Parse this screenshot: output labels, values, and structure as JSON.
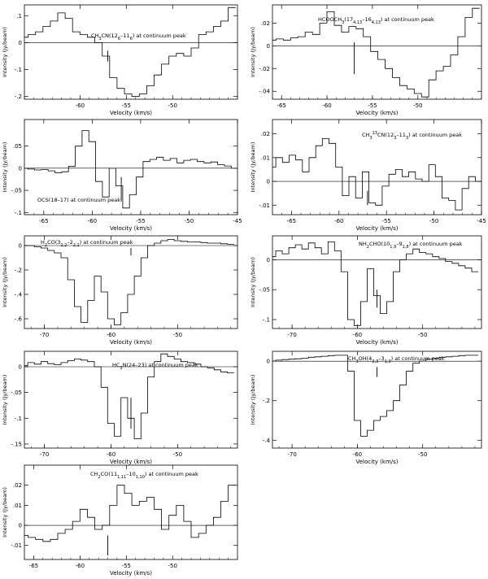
{
  "chart_data": [
    {
      "type": "line",
      "title": "CH3CN(12_6–11_6) at continuum peak",
      "title_html": "CH<tspan baseline-shift='sub' font-size='5'>3</tspan>CN(12<tspan baseline-shift='sub' font-size='5'>6</tspan>–11<tspan baseline-shift='sub' font-size='5'>6</tspan>) at continuum peak",
      "xlabel": "Velocity (km/s)",
      "ylabel": "Intensity (Jy/beam)",
      "xlim": [
        -66,
        -43
      ],
      "ylim": [
        -0.21,
        0.14
      ],
      "xticks": [
        -60,
        -55,
        -50
      ],
      "yticks": [
        -0.2,
        -0.1,
        0,
        0.1
      ],
      "vline": {
        "x": -57,
        "y": [
          -0.07,
          -0.03
        ]
      },
      "x": [
        -66,
        -65.2,
        -64.4,
        -63.6,
        -62.8,
        -62,
        -61.2,
        -60.4,
        -59.6,
        -58.8,
        -58,
        -57.2,
        -56.4,
        -55.6,
        -54.8,
        -54,
        -53.2,
        -52.4,
        -51.6,
        -50.8,
        -50,
        -49.2,
        -48.4,
        -47.6,
        -46.8,
        -46,
        -45.2,
        -44.4,
        -43.6
      ],
      "y": [
        0.02,
        0.03,
        0.04,
        0.06,
        0.08,
        0.11,
        0.09,
        0.04,
        0.03,
        0.02,
        0.0,
        -0.05,
        -0.13,
        -0.17,
        -0.19,
        -0.2,
        -0.19,
        -0.16,
        -0.12,
        -0.08,
        -0.05,
        -0.04,
        -0.05,
        -0.02,
        0.03,
        0.04,
        0.06,
        0.08,
        0.13
      ]
    },
    {
      "type": "line",
      "title": "HCOOCH3(17_4,13–16_4,13) at continuum peak",
      "title_html": "HCOOCH<tspan baseline-shift='sub' font-size='5'>3</tspan>(17<tspan baseline-shift='sub' font-size='5'>4,13</tspan>–16<tspan baseline-shift='sub' font-size='5'>4,13</tspan>) at continuum peak",
      "xlabel": "Velocity (km/s)",
      "ylabel": "Intensity (Jy/beam)",
      "xlim": [
        -66,
        -43
      ],
      "ylim": [
        -0.047,
        0.036
      ],
      "xticks": [
        -65,
        -60,
        -55,
        -50
      ],
      "yticks": [
        -0.04,
        -0.02,
        0,
        0.02
      ],
      "vline": {
        "x": -57,
        "y": [
          -0.025,
          0.003
        ]
      },
      "x": [
        -66,
        -65.2,
        -64.4,
        -63.6,
        -62.8,
        -62,
        -61.2,
        -60.4,
        -59.6,
        -58.8,
        -58,
        -57.2,
        -56.4,
        -55.6,
        -54.8,
        -54,
        -53.2,
        -52.4,
        -51.6,
        -50.8,
        -50,
        -49.2,
        -48.4,
        -47.6,
        -46.8,
        -46,
        -45.2,
        -44.4,
        -43.6
      ],
      "y": [
        0.005,
        0.006,
        0.005,
        0.007,
        0.008,
        0.012,
        0.01,
        0.02,
        0.03,
        0.018,
        0.012,
        0.017,
        0.015,
        0.008,
        -0.005,
        -0.012,
        -0.02,
        -0.028,
        -0.035,
        -0.038,
        -0.042,
        -0.045,
        -0.03,
        -0.022,
        -0.018,
        -0.008,
        0.008,
        0.025,
        0.033
      ]
    },
    {
      "type": "line",
      "title": "OCS(18–17) at continuum peak",
      "title_html": "OCS(18–17) at continuum peak",
      "xlabel": "Velocity (km/s)",
      "ylabel": "Intensity (Jy/beam)",
      "xlim": [
        -67,
        -45
      ],
      "ylim": [
        -0.105,
        0.11
      ],
      "xticks": [
        -65,
        -60,
        -55,
        -50,
        -45
      ],
      "yticks": [
        -0.1,
        -0.05,
        0,
        0.05
      ],
      "vline": {
        "x": -57,
        "y": [
          -0.075,
          -0.02
        ]
      },
      "x": [
        -67,
        -66.3,
        -65.6,
        -64.9,
        -64.2,
        -63.5,
        -62.8,
        -62.1,
        -61.4,
        -60.7,
        -60,
        -59.3,
        -58.6,
        -57.9,
        -57.2,
        -56.5,
        -55.8,
        -55.1,
        -54.4,
        -53.7,
        -53,
        -52.3,
        -51.6,
        -50.9,
        -50.2,
        -49.5,
        -48.8,
        -48.1,
        -47.4,
        -46.7,
        -46,
        -45.3
      ],
      "y": [
        0.0,
        -0.002,
        -0.004,
        -0.003,
        -0.006,
        -0.01,
        -0.008,
        0.004,
        0.05,
        0.085,
        0.06,
        -0.03,
        -0.065,
        0.0,
        -0.04,
        -0.09,
        -0.06,
        -0.02,
        0.015,
        0.02,
        0.025,
        0.018,
        0.022,
        0.012,
        0.018,
        0.02,
        0.015,
        0.012,
        0.014,
        0.008,
        0.005,
        0.0
      ]
    },
    {
      "type": "line",
      "title": "CH3 13CN(12_3–11_3) at continuum peak",
      "title_html": "CH<tspan baseline-shift='sub' font-size='5'>3</tspan><tspan baseline-shift='super' font-size='5'>13</tspan>CN(12<tspan baseline-shift='sub' font-size='5'>3</tspan>–11<tspan baseline-shift='sub' font-size='5'>3</tspan>) at continuum peak",
      "xlabel": "Velocity (km/s)",
      "ylabel": "Intensity (Jy/beam)",
      "xlim": [
        -67,
        -45
      ],
      "ylim": [
        -0.014,
        0.026
      ],
      "xticks": [
        -65,
        -60,
        -55,
        -50,
        -45
      ],
      "yticks": [
        -0.01,
        0,
        0.01,
        0.02
      ],
      "vline": {
        "x": -57,
        "y": [
          -0.01,
          -0.004
        ]
      },
      "x": [
        -67,
        -66.3,
        -65.6,
        -64.9,
        -64.2,
        -63.5,
        -62.8,
        -62.1,
        -61.4,
        -60.7,
        -60,
        -59.3,
        -58.6,
        -57.9,
        -57.2,
        -56.5,
        -55.8,
        -55.1,
        -54.4,
        -53.7,
        -53,
        -52.3,
        -51.6,
        -50.9,
        -50.2,
        -49.5,
        -48.8,
        -48.1,
        -47.4,
        -46.7,
        -46,
        -45.3
      ],
      "y": [
        0.006,
        0.01,
        0.008,
        0.011,
        0.009,
        0.004,
        0.01,
        0.015,
        0.018,
        0.016,
        0.006,
        -0.006,
        0.002,
        -0.007,
        0.004,
        -0.009,
        -0.01,
        -0.002,
        0.003,
        0.005,
        0.002,
        0.004,
        0.001,
        0.0,
        0.007,
        0.002,
        -0.007,
        -0.008,
        -0.012,
        -0.003,
        0.002,
        0.0
      ]
    },
    {
      "type": "line",
      "title": "H2CO(3_2,2–2_2,1) at continuum peak",
      "title_html": "H<tspan baseline-shift='sub' font-size='5'>2</tspan>CO(3<tspan baseline-shift='sub' font-size='5'>2,2</tspan>–2<tspan baseline-shift='sub' font-size='5'>2,1</tspan>) at continuum peak",
      "xlabel": "Velocity (km/s)",
      "ylabel": "Intensity (Jy/beam)",
      "xlim": [
        -73,
        -41
      ],
      "ylim": [
        -0.68,
        0.08
      ],
      "xticks": [
        -70,
        -60,
        -50
      ],
      "yticks": [
        -0.6,
        -0.4,
        -0.2,
        0
      ],
      "vline": {
        "x": -57,
        "y": [
          -0.08,
          -0.02
        ]
      },
      "x": [
        -73,
        -72,
        -71,
        -70,
        -69,
        -68,
        -67,
        -66,
        -65,
        -64,
        -63,
        -62,
        -61,
        -60,
        -59,
        -58,
        -57,
        -56,
        -55,
        -54,
        -53,
        -52,
        -51,
        -50,
        -49,
        -48,
        -47,
        -46,
        -45,
        -44,
        -43,
        -42
      ],
      "y": [
        0.0,
        0.0,
        -0.01,
        -0.02,
        -0.04,
        -0.06,
        -0.1,
        -0.28,
        -0.5,
        -0.63,
        -0.45,
        -0.25,
        -0.38,
        -0.6,
        -0.65,
        -0.55,
        -0.4,
        -0.25,
        -0.1,
        0.0,
        0.02,
        0.04,
        0.05,
        0.04,
        0.035,
        0.03,
        0.03,
        0.025,
        0.02,
        0.02,
        0.015,
        0.01
      ]
    },
    {
      "type": "line",
      "title": "NH2CHO(10_1,9–9_1,8) at continuum peak",
      "title_html": "NH<tspan baseline-shift='sub' font-size='5'>2</tspan>CHO(10<tspan baseline-shift='sub' font-size='5'>1,9</tspan>–9<tspan baseline-shift='sub' font-size='5'>1,8</tspan>) at continuum peak",
      "xlabel": "Velocity (km/s)",
      "ylabel": "Intensity (Jy/beam)",
      "xlim": [
        -73,
        -41
      ],
      "ylim": [
        -0.115,
        0.04
      ],
      "xticks": [
        -70,
        -60,
        -50
      ],
      "yticks": [
        -0.1,
        -0.05,
        0
      ],
      "vline": {
        "x": -57,
        "y": [
          -0.08,
          -0.05
        ]
      },
      "x": [
        -73,
        -72,
        -71,
        -70,
        -69,
        -68,
        -67,
        -66,
        -65,
        -64,
        -63,
        -62,
        -61,
        -60,
        -59,
        -58,
        -57,
        -56,
        -55,
        -54,
        -53,
        -52,
        -51,
        -50,
        -49,
        -48,
        -47,
        -46,
        -45,
        -44,
        -43,
        -42
      ],
      "y": [
        0.005,
        0.015,
        0.01,
        0.02,
        0.025,
        0.018,
        0.028,
        0.02,
        0.01,
        0.03,
        0.015,
        -0.02,
        -0.1,
        -0.11,
        -0.07,
        -0.015,
        -0.06,
        -0.09,
        -0.07,
        -0.02,
        0.0,
        0.01,
        0.018,
        0.012,
        0.01,
        0.005,
        0.002,
        -0.003,
        -0.006,
        -0.01,
        -0.014,
        -0.02
      ]
    },
    {
      "type": "line",
      "title": "HC3N(24–23) at continuum peak",
      "title_html": "HC<tspan baseline-shift='sub' font-size='5'>3</tspan>N(24–23) at continuum peak",
      "xlabel": "Velocity (km/s)",
      "ylabel": "Intensity (Jy/beam)",
      "xlim": [
        -73,
        -41
      ],
      "ylim": [
        -0.158,
        0.03
      ],
      "xticks": [
        -70,
        -60,
        -50
      ],
      "yticks": [
        -0.15,
        -0.1,
        -0.05,
        0
      ],
      "vline": {
        "x": -57,
        "y": [
          -0.12,
          -0.06
        ]
      },
      "x": [
        -73,
        -72,
        -71,
        -70,
        -69,
        -68,
        -67,
        -66,
        -65,
        -64,
        -63,
        -62,
        -61,
        -60,
        -59,
        -58,
        -57,
        -56,
        -55,
        -54,
        -53,
        -52,
        -51,
        -50,
        -49,
        -48,
        -47,
        -46,
        -45,
        -44,
        -43,
        -42
      ],
      "y": [
        0.002,
        0.008,
        0.005,
        0.01,
        0.006,
        0.004,
        0.008,
        0.012,
        0.015,
        0.013,
        0.01,
        0.0,
        -0.04,
        -0.11,
        -0.135,
        -0.06,
        -0.1,
        -0.14,
        -0.09,
        -0.02,
        0.01,
        0.025,
        0.02,
        0.015,
        0.01,
        0.008,
        0.005,
        0.0,
        -0.002,
        -0.006,
        -0.01,
        -0.012
      ]
    },
    {
      "type": "line",
      "title": "CH3OH(4_2,3–3_1,3) at continuum peak",
      "title_html": "CH<tspan baseline-shift='sub' font-size='5'>3</tspan>OH(4<tspan baseline-shift='sub' font-size='5'>2,3</tspan>–3<tspan baseline-shift='sub' font-size='5'>1,3</tspan>) at continuum peak",
      "xlabel": "Velocity (km/s)",
      "ylabel": "Intensity (Jy/beam)",
      "xlim": [
        -73,
        -41
      ],
      "ylim": [
        -0.44,
        0.05
      ],
      "xticks": [
        -70,
        -60,
        -50
      ],
      "yticks": [
        -0.4,
        -0.2,
        0
      ],
      "vline": {
        "x": -57,
        "y": [
          -0.08,
          -0.03
        ]
      },
      "x": [
        -73,
        -72,
        -71,
        -70,
        -69,
        -68,
        -67,
        -66,
        -65,
        -64,
        -63,
        -62,
        -61,
        -60,
        -59,
        -58,
        -57,
        -56,
        -55,
        -54,
        -53,
        -52,
        -51,
        -50,
        -49,
        -48,
        -47,
        -46,
        -45,
        -44,
        -43,
        -42
      ],
      "y": [
        0.0,
        0.005,
        0.008,
        0.01,
        0.012,
        0.015,
        0.02,
        0.022,
        0.025,
        0.028,
        0.03,
        0.03,
        -0.05,
        -0.3,
        -0.38,
        -0.35,
        -0.3,
        -0.28,
        -0.25,
        -0.2,
        -0.12,
        -0.05,
        -0.01,
        0.0,
        0.01,
        0.015,
        0.02,
        0.022,
        0.025,
        0.028,
        0.03,
        0.03
      ]
    },
    {
      "type": "line",
      "title": "CH2CO(11_1,11–10_1,10) at continuum peak",
      "title_html": "CH<tspan baseline-shift='sub' font-size='5'>2</tspan>CO(11<tspan baseline-shift='sub' font-size='5'>1,11</tspan>–10<tspan baseline-shift='sub' font-size='5'>1,10</tspan>) at continuum peak",
      "xlabel": "Velocity (km/s)",
      "ylabel": "Intensity (Jy/beam)",
      "xlim": [
        -66,
        -43
      ],
      "ylim": [
        -0.017,
        0.03
      ],
      "xticks": [
        -65,
        -60,
        -55,
        -50
      ],
      "yticks": [
        -0.01,
        0,
        0.01,
        0.02
      ],
      "vline": {
        "x": -57,
        "y": [
          -0.015,
          -0.005
        ]
      },
      "x": [
        -66,
        -65.2,
        -64.4,
        -63.6,
        -62.8,
        -62,
        -61.2,
        -60.4,
        -59.6,
        -58.8,
        -58,
        -57.2,
        -56.4,
        -55.6,
        -54.8,
        -54,
        -53.2,
        -52.4,
        -51.6,
        -50.8,
        -50,
        -49.2,
        -48.4,
        -47.6,
        -46.8,
        -46,
        -45.2,
        -44.4,
        -43.6
      ],
      "y": [
        -0.005,
        -0.006,
        -0.007,
        -0.008,
        -0.007,
        -0.004,
        -0.002,
        0.002,
        0.008,
        0.004,
        -0.002,
        0.0,
        0.01,
        0.02,
        0.016,
        0.01,
        0.012,
        0.014,
        0.008,
        -0.002,
        0.005,
        0.01,
        0.002,
        -0.006,
        -0.004,
        0.0,
        0.004,
        0.012,
        0.02
      ]
    }
  ]
}
